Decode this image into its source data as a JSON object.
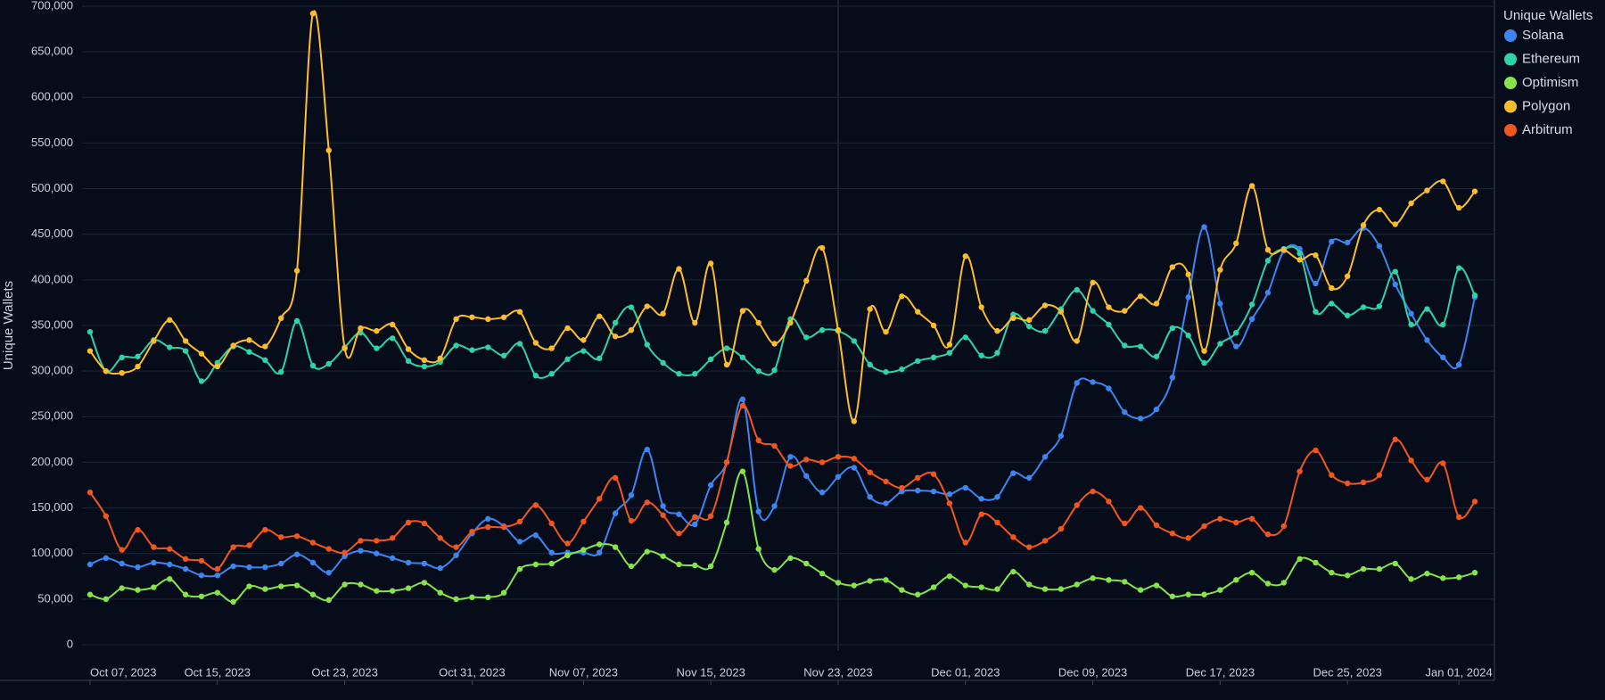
{
  "chart_data": {
    "type": "line",
    "y_label": "Unique Wallets",
    "legend_title": "Unique Wallets",
    "legend_position": "right",
    "grid": true,
    "x": [
      "2023-10-07",
      "2023-10-08",
      "2023-10-09",
      "2023-10-10",
      "2023-10-11",
      "2023-10-12",
      "2023-10-13",
      "2023-10-14",
      "2023-10-15",
      "2023-10-16",
      "2023-10-17",
      "2023-10-18",
      "2023-10-19",
      "2023-10-20",
      "2023-10-21",
      "2023-10-22",
      "2023-10-23",
      "2023-10-24",
      "2023-10-25",
      "2023-10-26",
      "2023-10-27",
      "2023-10-28",
      "2023-10-29",
      "2023-10-30",
      "2023-10-31",
      "2023-11-01",
      "2023-11-02",
      "2023-11-03",
      "2023-11-04",
      "2023-11-05",
      "2023-11-06",
      "2023-11-07",
      "2023-11-08",
      "2023-11-09",
      "2023-11-10",
      "2023-11-11",
      "2023-11-12",
      "2023-11-13",
      "2023-11-14",
      "2023-11-15",
      "2023-11-16",
      "2023-11-17",
      "2023-11-18",
      "2023-11-19",
      "2023-11-20",
      "2023-11-21",
      "2023-11-22",
      "2023-11-23",
      "2023-11-24",
      "2023-11-25",
      "2023-11-26",
      "2023-11-27",
      "2023-11-28",
      "2023-11-29",
      "2023-11-30",
      "2023-12-01",
      "2023-12-02",
      "2023-12-03",
      "2023-12-04",
      "2023-12-05",
      "2023-12-06",
      "2023-12-07",
      "2023-12-08",
      "2023-12-09",
      "2023-12-10",
      "2023-12-11",
      "2023-12-12",
      "2023-12-13",
      "2023-12-14",
      "2023-12-15",
      "2023-12-16",
      "2023-12-17",
      "2023-12-18",
      "2023-12-19",
      "2023-12-20",
      "2023-12-21",
      "2023-12-22",
      "2023-12-23",
      "2023-12-24",
      "2023-12-25",
      "2023-12-26",
      "2023-12-27",
      "2023-12-28",
      "2023-12-29",
      "2023-12-30",
      "2023-12-31",
      "2024-01-01",
      "2024-01-02"
    ],
    "xlim": [
      "2023-10-07",
      "2024-01-02"
    ],
    "xticks": [
      {
        "value": "2023-10-07",
        "label": "Oct 07, 2023"
      },
      {
        "value": "2023-10-15",
        "label": "Oct 15, 2023"
      },
      {
        "value": "2023-10-23",
        "label": "Oct 23, 2023"
      },
      {
        "value": "2023-10-31",
        "label": "Oct 31, 2023"
      },
      {
        "value": "2023-11-07",
        "label": "Nov 07, 2023"
      },
      {
        "value": "2023-11-15",
        "label": "Nov 15, 2023"
      },
      {
        "value": "2023-11-23",
        "label": "Nov 23, 2023"
      },
      {
        "value": "2023-12-01",
        "label": "Dec 01, 2023"
      },
      {
        "value": "2023-12-09",
        "label": "Dec 09, 2023"
      },
      {
        "value": "2023-12-17",
        "label": "Dec 17, 2023"
      },
      {
        "value": "2023-12-25",
        "label": "Dec 25, 2023"
      },
      {
        "value": "2024-01-01",
        "label": "Jan 01, 2024"
      }
    ],
    "ylim": [
      0,
      700000
    ],
    "yticks": [
      0,
      {
        "value": 50000,
        "label": "50,000"
      },
      {
        "value": 100000,
        "label": "100,000"
      },
      {
        "value": 150000,
        "label": "150,000"
      },
      {
        "value": 200000,
        "label": "200,000"
      },
      {
        "value": 250000,
        "label": "250,000"
      },
      {
        "value": 300000,
        "label": "300,000"
      },
      {
        "value": 350000,
        "label": "350,000"
      },
      {
        "value": 400000,
        "label": "400,000"
      },
      {
        "value": 450000,
        "label": "450,000"
      },
      {
        "value": 500000,
        "label": "500,000"
      },
      {
        "value": 550000,
        "label": "550,000"
      },
      {
        "value": 600000,
        "label": "600,000"
      },
      {
        "value": 650000,
        "label": "650,000"
      },
      {
        "value": 700000,
        "label": "700,000"
      }
    ],
    "series": [
      {
        "name": "Solana",
        "color": "#3d85f0",
        "values": [
          88000,
          95000,
          89000,
          85000,
          90000,
          88000,
          83000,
          76000,
          76000,
          86000,
          85000,
          85000,
          89000,
          99000,
          90000,
          79000,
          97000,
          103000,
          100000,
          95000,
          90000,
          89000,
          84000,
          98000,
          122000,
          138000,
          130000,
          113000,
          120000,
          101000,
          101000,
          101000,
          101000,
          144000,
          164000,
          214000,
          152000,
          143000,
          132000,
          175000,
          200000,
          269000,
          146000,
          152000,
          206000,
          185000,
          167000,
          184000,
          194000,
          162000,
          155000,
          168000,
          169000,
          168000,
          165000,
          172000,
          160000,
          162000,
          188000,
          183000,
          206000,
          229000,
          287000,
          288000,
          281000,
          255000,
          248000,
          258000,
          293000,
          381000,
          458000,
          374000,
          327000,
          357000,
          386000,
          432000,
          434000,
          396000,
          442000,
          441000,
          457000,
          437000,
          395000,
          363000,
          334000,
          315000,
          307000,
          381000
        ]
      },
      {
        "name": "Ethereum",
        "color": "#2ed3a6",
        "values": [
          343000,
          300000,
          315000,
          316000,
          334000,
          326000,
          322000,
          289000,
          309000,
          327000,
          321000,
          312000,
          299000,
          355000,
          306000,
          308000,
          326000,
          342000,
          325000,
          336000,
          311000,
          305000,
          310000,
          328000,
          323000,
          326000,
          317000,
          330000,
          295000,
          297000,
          313000,
          322000,
          314000,
          353000,
          370000,
          329000,
          309000,
          297000,
          297000,
          313000,
          325000,
          315000,
          300000,
          301000,
          357000,
          337000,
          345000,
          344000,
          333000,
          307000,
          299000,
          302000,
          311000,
          315000,
          320000,
          337000,
          317000,
          320000,
          362000,
          349000,
          344000,
          368000,
          389000,
          366000,
          351000,
          328000,
          327000,
          316000,
          347000,
          339000,
          309000,
          330000,
          342000,
          373000,
          421000,
          434000,
          429000,
          365000,
          374000,
          361000,
          370000,
          371000,
          409000,
          351000,
          368000,
          351000,
          413000,
          383000
        ]
      },
      {
        "name": "Optimism",
        "color": "#86e34b",
        "values": [
          55000,
          50000,
          62000,
          60000,
          63000,
          72000,
          55000,
          53000,
          57000,
          47000,
          64000,
          61000,
          64000,
          65000,
          55000,
          49000,
          66000,
          66000,
          59000,
          59000,
          62000,
          68000,
          57000,
          50000,
          52000,
          52000,
          57000,
          83000,
          88000,
          89000,
          98000,
          104000,
          110000,
          107000,
          86000,
          102000,
          97000,
          88000,
          87000,
          86000,
          134000,
          190000,
          105000,
          82000,
          95000,
          89000,
          78000,
          68000,
          65000,
          70000,
          71000,
          60000,
          55000,
          63000,
          75000,
          65000,
          63000,
          61000,
          80000,
          66000,
          61000,
          61000,
          66000,
          73000,
          71000,
          69000,
          60000,
          65000,
          53000,
          55000,
          55000,
          60000,
          71000,
          79000,
          67000,
          68000,
          94000,
          90000,
          79000,
          76000,
          83000,
          83000,
          89000,
          72000,
          78000,
          73000,
          74000,
          79000
        ]
      },
      {
        "name": "Polygon",
        "color": "#fbbd2c",
        "values": [
          322000,
          300000,
          298000,
          305000,
          333000,
          356000,
          333000,
          319000,
          305000,
          328000,
          334000,
          327000,
          358000,
          410000,
          692000,
          542000,
          325000,
          347000,
          344000,
          351000,
          324000,
          312000,
          314000,
          357000,
          359000,
          357000,
          359000,
          365000,
          331000,
          325000,
          347000,
          334000,
          360000,
          338000,
          345000,
          371000,
          363000,
          412000,
          353000,
          418000,
          307000,
          366000,
          353000,
          330000,
          353000,
          399000,
          435000,
          345000,
          245000,
          368000,
          343000,
          382000,
          365000,
          350000,
          329000,
          426000,
          370000,
          344000,
          358000,
          356000,
          372000,
          365000,
          333000,
          397000,
          370000,
          366000,
          382000,
          374000,
          414000,
          406000,
          322000,
          411000,
          440000,
          503000,
          433000,
          433000,
          422000,
          427000,
          391000,
          404000,
          460000,
          477000,
          461000,
          484000,
          498000,
          508000,
          479000,
          497000
        ]
      },
      {
        "name": "Arbitrum",
        "color": "#f2561f",
        "values": [
          167000,
          141000,
          104000,
          126000,
          107000,
          105000,
          94000,
          92000,
          83000,
          107000,
          109000,
          126000,
          118000,
          119000,
          112000,
          105000,
          101000,
          114000,
          114000,
          117000,
          134000,
          133000,
          117000,
          107000,
          124000,
          129000,
          129000,
          135000,
          153000,
          133000,
          111000,
          135000,
          160000,
          183000,
          136000,
          156000,
          142000,
          122000,
          140000,
          141000,
          200000,
          262000,
          224000,
          218000,
          196000,
          203000,
          200000,
          206000,
          204000,
          189000,
          179000,
          172000,
          183000,
          187000,
          155000,
          112000,
          143000,
          134000,
          118000,
          107000,
          114000,
          127000,
          153000,
          168000,
          157000,
          133000,
          150000,
          131000,
          122000,
          117000,
          130000,
          138000,
          134000,
          138000,
          121000,
          130000,
          190000,
          213000,
          186000,
          177000,
          178000,
          186000,
          225000,
          202000,
          181000,
          199000,
          140000,
          157000
        ]
      }
    ]
  }
}
